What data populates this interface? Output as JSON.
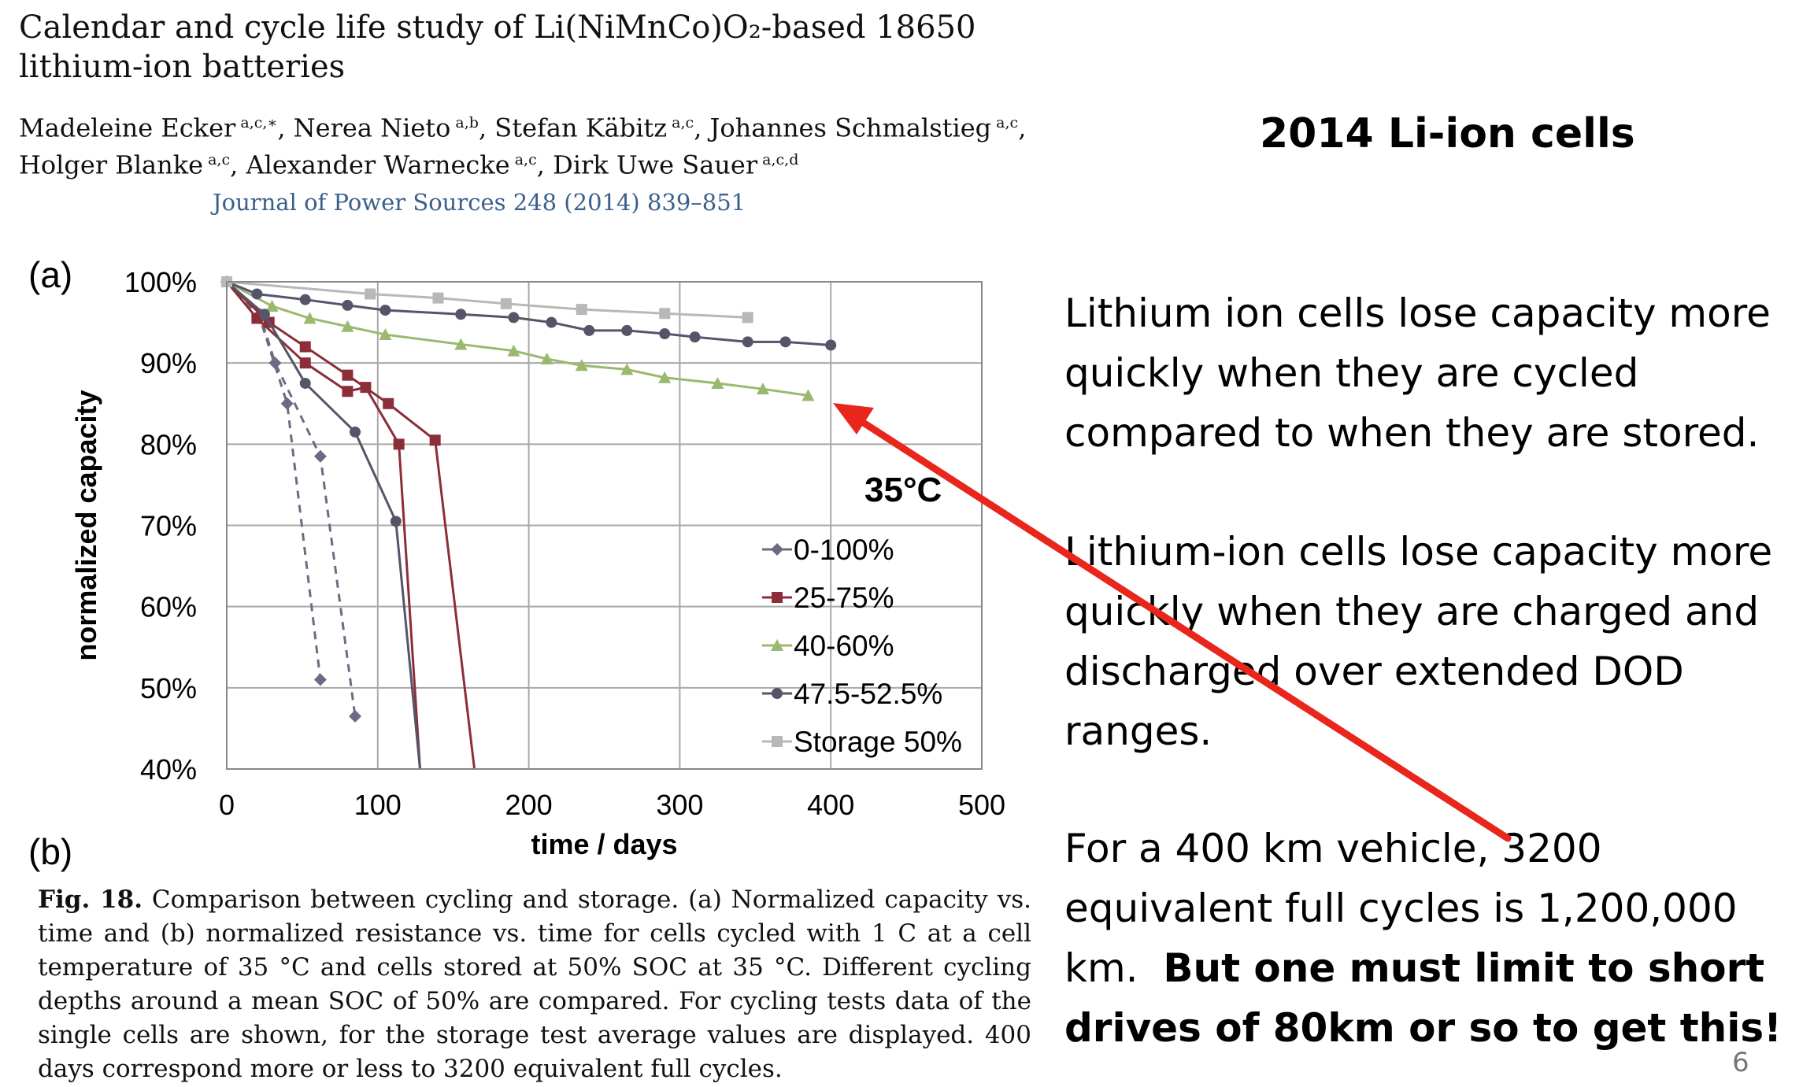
{
  "paper": {
    "title": "Calendar and cycle life study of Li(NiMnCo)O₂-based 18650 lithium-ion batteries",
    "authors": [
      {
        "name": "Madeleine Ecker",
        "aff": "a,c,∗"
      },
      {
        "name": "Nerea Nieto",
        "aff": "a,b"
      },
      {
        "name": "Stefan Käbitz",
        "aff": "a,c"
      },
      {
        "name": "Johannes Schmalstieg",
        "aff": "a,c"
      },
      {
        "name": "Holger Blanke",
        "aff": "a,c"
      },
      {
        "name": "Alexander Warnecke",
        "aff": "a,c"
      },
      {
        "name": "Dirk Uwe Sauer",
        "aff": "a,c,d"
      }
    ],
    "journal": "Journal of Power Sources 248 (2014) 839–851",
    "panel_a": "(a)",
    "panel_b": "(b)",
    "caption_label": "Fig. 18.",
    "caption_text": "Comparison between cycling and storage. (a) Normalized capacity vs. time and (b) normalized resistance vs. time for cells cycled with 1 C at a cell temperature of 35 °C and cells stored at 50% SOC at 35 °C. Different cycling depths around a mean SOC of 50% are compared. For cycling tests data of the single cells are shown, for the storage test average values are displayed. 400 days correspond more or less to 3200 equivalent full cycles."
  },
  "slide": {
    "title": "2014 Li-ion cells",
    "para1": "Lithium ion cells lose capacity more quickly when they are cycled compared to when they are stored.",
    "para2": "Lithium-ion cells lose capacity more quickly when they are charged and discharged over extended DOD ranges.",
    "para3_normal": "For a 400 km vehicle, 3200 equivalent full cycles is 1,200,000 km.",
    "para3_bold": "But one must limit to short drives of 80km or so to get this!",
    "page_number": "6",
    "arrow_color": "#e8261c"
  },
  "chart_data": {
    "type": "line",
    "xlabel": "time / days",
    "ylabel": "normalized capacity",
    "xlim": [
      0,
      500
    ],
    "ylim": [
      40,
      100
    ],
    "xticks": [
      0,
      100,
      200,
      300,
      400,
      500
    ],
    "yticks": [
      40,
      50,
      60,
      70,
      80,
      90,
      100
    ],
    "ytick_labels": [
      "40%",
      "50%",
      "60%",
      "70%",
      "80%",
      "90%",
      "100%"
    ],
    "grid": true,
    "annotation": "35°C",
    "legend_position": "lower-right",
    "series": [
      {
        "name": "0-100%",
        "color": "#6b6b82",
        "marker": "diamond",
        "dashed": true,
        "cells": [
          {
            "x": [
              0,
              22,
              40,
              62
            ],
            "y": [
              100,
              95.5,
              85,
              51
            ]
          },
          {
            "x": [
              0,
              22,
              32,
              62,
              85
            ],
            "y": [
              100,
              96,
              90,
              78.5,
              46.5
            ]
          }
        ]
      },
      {
        "name": "25-75%",
        "color": "#8b2e3a",
        "marker": "square",
        "dashed": false,
        "cells": [
          {
            "x": [
              0,
              28,
              52,
              80,
              107,
              138,
              164
            ],
            "y": [
              100,
              95,
              92,
              88.5,
              85,
              80.5,
              40
            ]
          },
          {
            "x": [
              0,
              20,
              52,
              80,
              92,
              114,
              128
            ],
            "y": [
              100,
              95.5,
              90,
              86.5,
              87,
              80,
              40
            ]
          }
        ]
      },
      {
        "name": "40-60%",
        "color": "#9bb86f",
        "marker": "triangle",
        "dashed": false,
        "cells": [
          {
            "x": [
              0,
              30,
              55,
              80,
              105,
              155,
              190,
              212,
              235,
              265,
              290,
              325,
              355,
              385
            ],
            "y": [
              100,
              97,
              95.5,
              94.5,
              93.5,
              92.3,
              91.5,
              90.5,
              89.7,
              89.2,
              88.2,
              87.5,
              86.8,
              86
            ]
          }
        ]
      },
      {
        "name": "47.5-52.5%",
        "color": "#55556a",
        "marker": "circle",
        "dashed": false,
        "cells": [
          {
            "x": [
              0,
              20,
              52,
              80,
              105,
              155,
              190,
              215,
              240,
              265,
              290,
              310,
              345,
              370,
              400
            ],
            "y": [
              100,
              98.5,
              97.8,
              97.1,
              96.5,
              96,
              95.6,
              95,
              94,
              94,
              93.6,
              93.2,
              92.6,
              92.6,
              92.2
            ]
          },
          {
            "x": [
              0,
              25,
              52,
              85,
              112,
              128
            ],
            "y": [
              100,
              96,
              87.5,
              81.5,
              70.5,
              40
            ]
          }
        ]
      },
      {
        "name": "Storage 50%",
        "color": "#b8b8b8",
        "marker": "square",
        "dashed": false,
        "cells": [
          {
            "x": [
              0,
              95,
              140,
              185,
              235,
              290,
              345
            ],
            "y": [
              100,
              98.5,
              98,
              97.3,
              96.6,
              96.1,
              95.6
            ]
          }
        ]
      }
    ]
  }
}
